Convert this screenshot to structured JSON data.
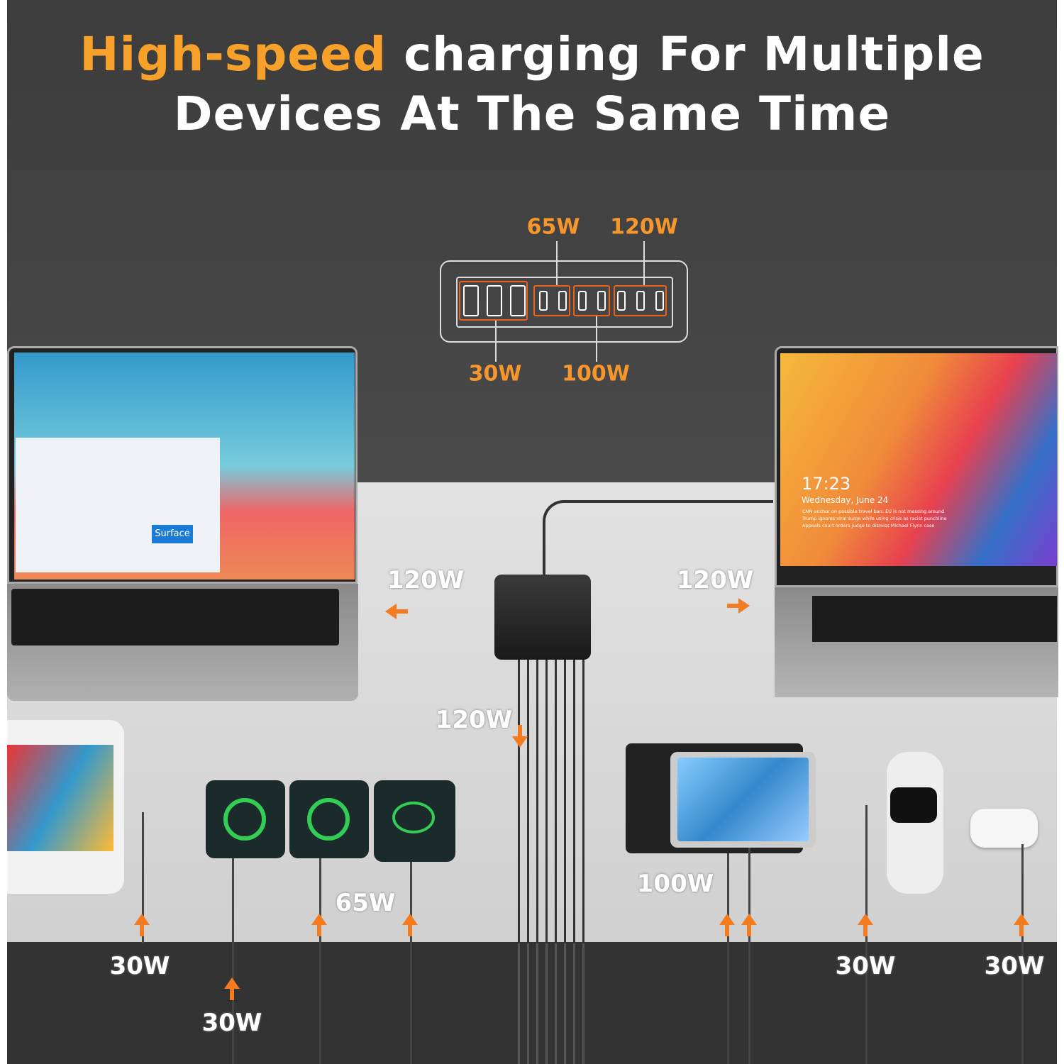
{
  "title": {
    "highlight": "High-speed",
    "line1_rest": "charging For Multiple",
    "line2": "Devices At The Same Time"
  },
  "diagram": {
    "labels": [
      "65W",
      "120W",
      "30W",
      "100W"
    ]
  },
  "laptop_right": {
    "time": "17:23",
    "date": "Wednesday, June 24",
    "news": [
      "CNN anchor on possible travel ban: EU is not messing around",
      "Trump ignores viral surge while using crisis as racist punchline",
      "Appeals court orders judge to dismiss Michael Flynn case"
    ]
  },
  "laptop_left": {
    "tile": "Surface"
  },
  "power_labels": {
    "left_laptop": "120W",
    "right_laptop": "120W",
    "center": "120W",
    "tablet": "100W",
    "phone3": "65W",
    "switch": "30W",
    "phone1": "30W",
    "watch": "30W",
    "earbuds": "30W"
  },
  "colors": {
    "accent": "#f7a12b",
    "arrow": "#f47b20"
  }
}
